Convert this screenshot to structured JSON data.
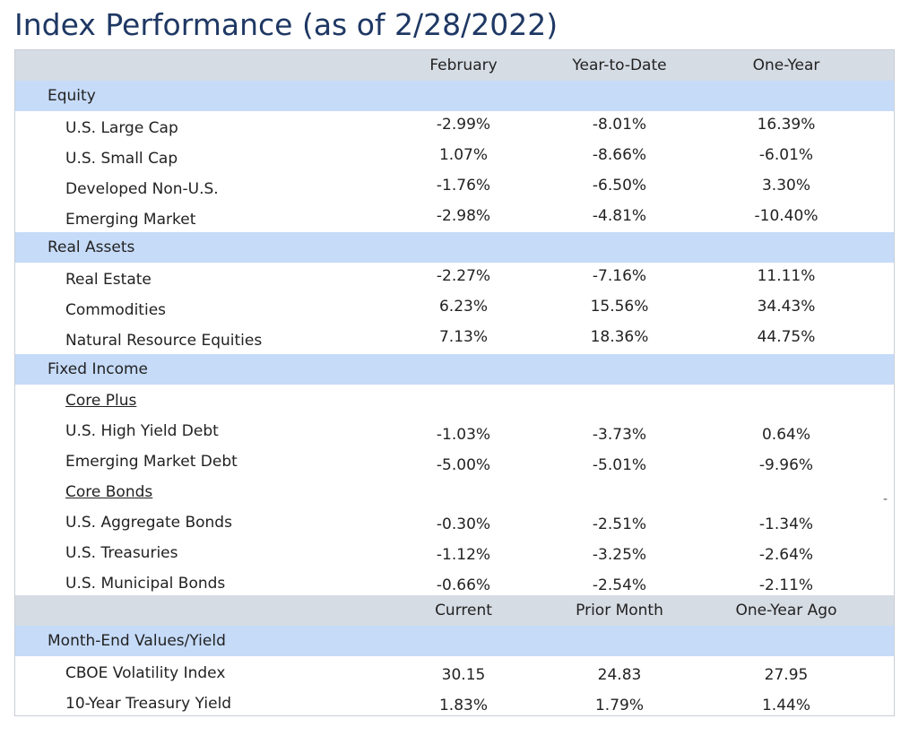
{
  "title": "Index Performance (as of 2/28/2022)",
  "performance_header": {
    "col1": "February",
    "col2": "Year-to-Date",
    "col3": "One-Year"
  },
  "equity": {
    "label": "Equity",
    "rows": [
      {
        "name": "U.S. Large Cap",
        "february": "-2.99%",
        "ytd": "-8.01%",
        "one_year": "16.39%"
      },
      {
        "name": "U.S. Small Cap",
        "february": "1.07%",
        "ytd": "-8.66%",
        "one_year": "-6.01%"
      },
      {
        "name": "Developed Non-U.S.",
        "february": "-1.76%",
        "ytd": "-6.50%",
        "one_year": "3.30%"
      },
      {
        "name": "Emerging Market",
        "february": "-2.98%",
        "ytd": "-4.81%",
        "one_year": "-10.40%"
      }
    ]
  },
  "real_assets": {
    "label": "Real Assets",
    "rows": [
      {
        "name": "Real Estate",
        "february": "-2.27%",
        "ytd": "-7.16%",
        "one_year": "11.11%"
      },
      {
        "name": "Commodities",
        "february": "6.23%",
        "ytd": "15.56%",
        "one_year": "34.43%"
      },
      {
        "name": "Natural Resource Equities",
        "february": "7.13%",
        "ytd": "18.36%",
        "one_year": "44.75%"
      }
    ]
  },
  "fixed_income": {
    "label": "Fixed Income",
    "core_plus": {
      "label": "Core Plus",
      "rows": [
        {
          "name": "U.S. High Yield Debt",
          "february": "-1.03%",
          "ytd": "-3.73%",
          "one_year": "0.64%"
        },
        {
          "name": "Emerging Market Debt",
          "february": "-5.00%",
          "ytd": "-5.01%",
          "one_year": "-9.96%"
        }
      ]
    },
    "core_bonds": {
      "label": "Core Bonds",
      "rows": [
        {
          "name": "U.S. Aggregate Bonds",
          "february": "-0.30%",
          "ytd": "-2.51%",
          "one_year": "-1.34%"
        },
        {
          "name": "U.S. Treasuries",
          "february": "-1.12%",
          "ytd": "-3.25%",
          "one_year": "-2.64%"
        },
        {
          "name": "U.S. Municipal Bonds",
          "february": "-0.66%",
          "ytd": "-2.54%",
          "one_year": "-2.11%"
        }
      ]
    }
  },
  "values_header": {
    "col1": "Current",
    "col2": "Prior Month",
    "col3": "One-Year Ago"
  },
  "month_end": {
    "label": "Month-End Values/Yield",
    "rows": [
      {
        "name": "CBOE Volatility Index",
        "current": "30.15",
        "prior_month": "24.83",
        "one_year_ago": "27.95"
      },
      {
        "name": "10-Year Treasury Yield",
        "current": "1.83%",
        "prior_month": "1.79%",
        "one_year_ago": "1.44%"
      }
    ]
  },
  "stray_mark": "-",
  "colors": {
    "title": "#1f3864",
    "header_band": "#d6dce4",
    "section_band": "#c6dbf8",
    "border": "#c9ced6"
  }
}
